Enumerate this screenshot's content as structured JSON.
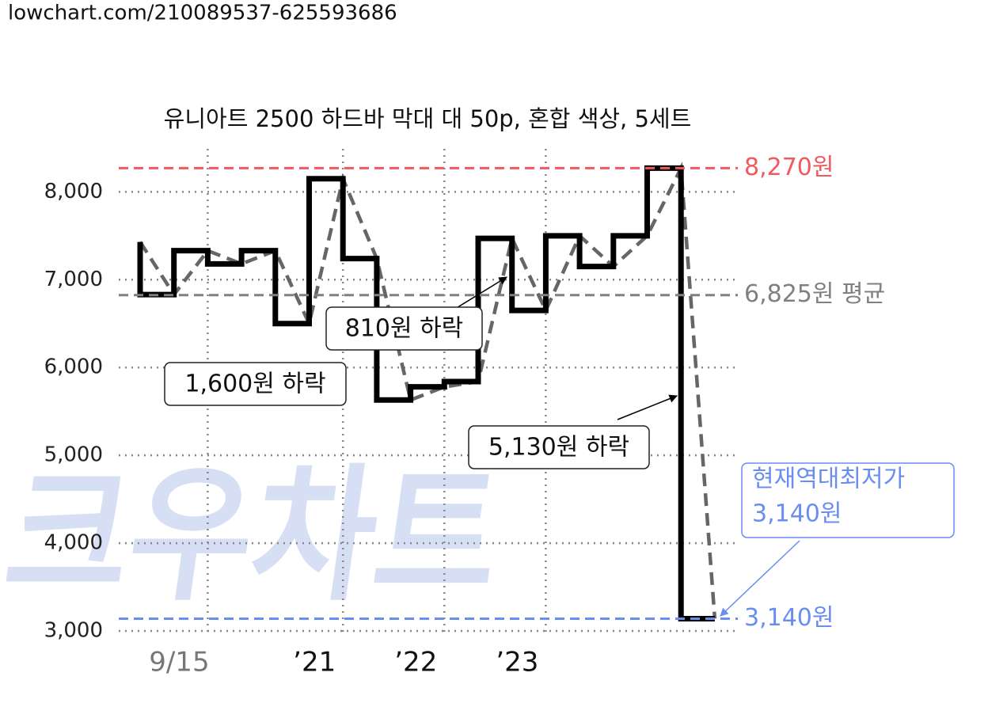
{
  "url": "lowchart.com/210089537-625593686",
  "watermark": "크우차트",
  "chart_data": {
    "type": "step",
    "title": "유니아트 2500 하드바 막대 대 50p, 혼합 색상, 5세트",
    "categories": [
      null,
      null,
      "9/15",
      null,
      null,
      null,
      "’21",
      null,
      null,
      "’22",
      null,
      null,
      "’23",
      null,
      null,
      null,
      null,
      null
    ],
    "values": [
      7430,
      6830,
      7330,
      7180,
      7330,
      6500,
      8150,
      7240,
      5630,
      5780,
      5840,
      7470,
      6650,
      7500,
      7150,
      7500,
      8270,
      3140
    ],
    "color": "#000000",
    "trend_color": "#666666",
    "ylim": [
      3000,
      8490
    ],
    "yticks": [
      {
        "value": 3000,
        "label": "3,000"
      },
      {
        "value": 4000,
        "label": "4,000"
      },
      {
        "value": 5000,
        "label": "5,000"
      },
      {
        "value": 6000,
        "label": "6,000"
      },
      {
        "value": 7000,
        "label": "7,000"
      },
      {
        "value": 8000,
        "label": "8,000"
      }
    ],
    "grid": true,
    "ref_lines": [
      {
        "value": 8270,
        "label": "8,270원",
        "color": "#f05a5f"
      },
      {
        "value": 6825,
        "label": "6,825원 평균",
        "color": "#808080"
      },
      {
        "value": 3140,
        "label": "3,140원",
        "color": "#6a8ef0"
      }
    ],
    "annotations": [
      "1,600원 하락",
      "810원 하락",
      "5,130원 하락"
    ],
    "low_note": [
      "현재역대최저가",
      "3,140원"
    ]
  }
}
